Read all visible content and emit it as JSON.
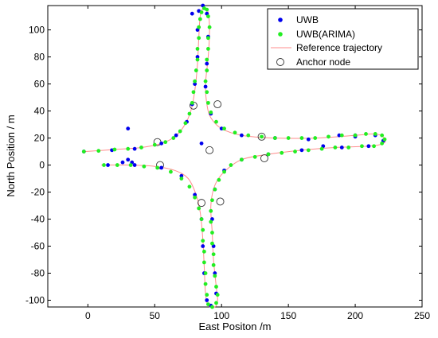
{
  "chart_data": {
    "type": "scatter",
    "xlabel": "East Positon /m",
    "ylabel": "North Position / m",
    "xlim": [
      -30,
      250
    ],
    "ylim": [
      -105,
      118
    ],
    "xticks": [
      0,
      50,
      100,
      150,
      200,
      250
    ],
    "yticks": [
      -100,
      -80,
      -60,
      -40,
      -20,
      0,
      20,
      40,
      60,
      80,
      100
    ],
    "grid": false,
    "legend_position": "top-right",
    "legend": [
      "UWB",
      "UWB(ARIMA)",
      "Reference trajectory",
      "Anchor node"
    ],
    "colors": {
      "uwb": "#0000ee",
      "arima": "#22ee22",
      "reference": "#ff8c8c",
      "anchor": "#333333"
    },
    "reference_trajectory": [
      {
        "name": "upper-left arc",
        "points": [
          [
            -3,
            10
          ],
          [
            20,
            11.5
          ],
          [
            40,
            13
          ],
          [
            55,
            16
          ],
          [
            65,
            21
          ],
          [
            72,
            29
          ],
          [
            77,
            40
          ],
          [
            80,
            55
          ],
          [
            82,
            75
          ],
          [
            83,
            95
          ],
          [
            84,
            110
          ],
          [
            86,
            116
          ],
          [
            88,
            116
          ],
          [
            90,
            113
          ],
          [
            91,
            100
          ],
          [
            90,
            80
          ],
          [
            88,
            60
          ],
          [
            89,
            45
          ],
          [
            92,
            35
          ],
          [
            100,
            27
          ],
          [
            115,
            22
          ],
          [
            140,
            20
          ],
          [
            170,
            20
          ],
          [
            200,
            22
          ],
          [
            215,
            23
          ],
          [
            222,
            20
          ],
          [
            221,
            16
          ],
          [
            210,
            14
          ],
          [
            185,
            13
          ],
          [
            160,
            11
          ],
          [
            135,
            8
          ],
          [
            115,
            4
          ],
          [
            102,
            -5
          ],
          [
            95,
            -15
          ],
          [
            92,
            -30
          ],
          [
            93,
            -50
          ],
          [
            94,
            -70
          ],
          [
            96,
            -90
          ],
          [
            97,
            -100
          ],
          [
            95,
            -105
          ],
          [
            90,
            -104
          ],
          [
            88,
            -95
          ],
          [
            87,
            -75
          ],
          [
            86,
            -55
          ],
          [
            84,
            -35
          ],
          [
            81,
            -22
          ],
          [
            75,
            -10
          ],
          [
            65,
            -4
          ],
          [
            50,
            -1
          ],
          [
            30,
            0
          ],
          [
            10,
            0
          ]
        ]
      }
    ],
    "anchor_nodes": [
      [
        52,
        17
      ],
      [
        54,
        0
      ],
      [
        79,
        44
      ],
      [
        85,
        -28
      ],
      [
        91,
        11
      ],
      [
        97,
        45
      ],
      [
        99,
        -27
      ],
      [
        130,
        21
      ],
      [
        132,
        5
      ]
    ],
    "series": [
      {
        "name": "UWB",
        "points": [
          [
            -3,
            10
          ],
          [
            18,
            11
          ],
          [
            35,
            12
          ],
          [
            55,
            16
          ],
          [
            66,
            22
          ],
          [
            74,
            32
          ],
          [
            78,
            45
          ],
          [
            80,
            60
          ],
          [
            82,
            80
          ],
          [
            82,
            100
          ],
          [
            78,
            112
          ],
          [
            83,
            114
          ],
          [
            86,
            118
          ],
          [
            89,
            112
          ],
          [
            90,
            95
          ],
          [
            89,
            75
          ],
          [
            88,
            58
          ],
          [
            92,
            38
          ],
          [
            100,
            27
          ],
          [
            115,
            22
          ],
          [
            140,
            20
          ],
          [
            165,
            19
          ],
          [
            188,
            22
          ],
          [
            200,
            22
          ],
          [
            215,
            22
          ],
          [
            221,
            18
          ],
          [
            210,
            14
          ],
          [
            190,
            13
          ],
          [
            160,
            11
          ],
          [
            135,
            8
          ],
          [
            115,
            4
          ],
          [
            102,
            -4
          ],
          [
            95,
            -18
          ],
          [
            93,
            -40
          ],
          [
            94,
            -60
          ],
          [
            95,
            -80
          ],
          [
            96,
            -95
          ],
          [
            92,
            -104
          ],
          [
            89,
            -100
          ],
          [
            87,
            -80
          ],
          [
            86,
            -60
          ],
          [
            85,
            -40
          ],
          [
            80,
            -22
          ],
          [
            70,
            -8
          ],
          [
            55,
            -2
          ],
          [
            35,
            0
          ],
          [
            15,
            0
          ],
          [
            30,
            27
          ],
          [
            30,
            4
          ],
          [
            33,
            2
          ],
          [
            26,
            2
          ],
          [
            85,
            16
          ],
          [
            176,
            14
          ],
          [
            200,
            21
          ]
        ]
      },
      {
        "name": "UWB(ARIMA)",
        "points": [
          [
            -3,
            10
          ],
          [
            8,
            10.5
          ],
          [
            20,
            11.5
          ],
          [
            30,
            12
          ],
          [
            40,
            13
          ],
          [
            50,
            15
          ],
          [
            58,
            17
          ],
          [
            64,
            20
          ],
          [
            69,
            25
          ],
          [
            73,
            31
          ],
          [
            76,
            38
          ],
          [
            78,
            46
          ],
          [
            79,
            54
          ],
          [
            80,
            62
          ],
          [
            81,
            70
          ],
          [
            82,
            78
          ],
          [
            82,
            86
          ],
          [
            83,
            94
          ],
          [
            83,
            102
          ],
          [
            84,
            108
          ],
          [
            85,
            113
          ],
          [
            87,
            116
          ],
          [
            89,
            115
          ],
          [
            90,
            110
          ],
          [
            91,
            102
          ],
          [
            90,
            94
          ],
          [
            90,
            86
          ],
          [
            89,
            78
          ],
          [
            89,
            70
          ],
          [
            88,
            62
          ],
          [
            89,
            54
          ],
          [
            90,
            46
          ],
          [
            92,
            39
          ],
          [
            96,
            32
          ],
          [
            102,
            27
          ],
          [
            110,
            24
          ],
          [
            120,
            22
          ],
          [
            130,
            21
          ],
          [
            140,
            20
          ],
          [
            150,
            20
          ],
          [
            160,
            20
          ],
          [
            170,
            20
          ],
          [
            180,
            21
          ],
          [
            190,
            22
          ],
          [
            200,
            22
          ],
          [
            208,
            23
          ],
          [
            215,
            23
          ],
          [
            220,
            22
          ],
          [
            222,
            19
          ],
          [
            220,
            16
          ],
          [
            214,
            14
          ],
          [
            205,
            14
          ],
          [
            195,
            13
          ],
          [
            185,
            13
          ],
          [
            175,
            12
          ],
          [
            165,
            11
          ],
          [
            155,
            10
          ],
          [
            145,
            9
          ],
          [
            135,
            8
          ],
          [
            125,
            6
          ],
          [
            115,
            4
          ],
          [
            107,
            0
          ],
          [
            102,
            -5
          ],
          [
            98,
            -11
          ],
          [
            95,
            -18
          ],
          [
            93,
            -26
          ],
          [
            92,
            -34
          ],
          [
            92,
            -42
          ],
          [
            93,
            -50
          ],
          [
            93,
            -58
          ],
          [
            94,
            -66
          ],
          [
            94,
            -74
          ],
          [
            95,
            -82
          ],
          [
            96,
            -90
          ],
          [
            97,
            -96
          ],
          [
            96,
            -102
          ],
          [
            93,
            -105
          ],
          [
            90,
            -103
          ],
          [
            89,
            -96
          ],
          [
            88,
            -88
          ],
          [
            88,
            -80
          ],
          [
            87,
            -72
          ],
          [
            87,
            -64
          ],
          [
            86,
            -56
          ],
          [
            86,
            -48
          ],
          [
            85,
            -40
          ],
          [
            83,
            -32
          ],
          [
            80,
            -24
          ],
          [
            76,
            -16
          ],
          [
            70,
            -10
          ],
          [
            62,
            -5
          ],
          [
            52,
            -2
          ],
          [
            42,
            -1
          ],
          [
            32,
            0
          ],
          [
            22,
            0
          ],
          [
            12,
            0
          ]
        ]
      }
    ]
  }
}
